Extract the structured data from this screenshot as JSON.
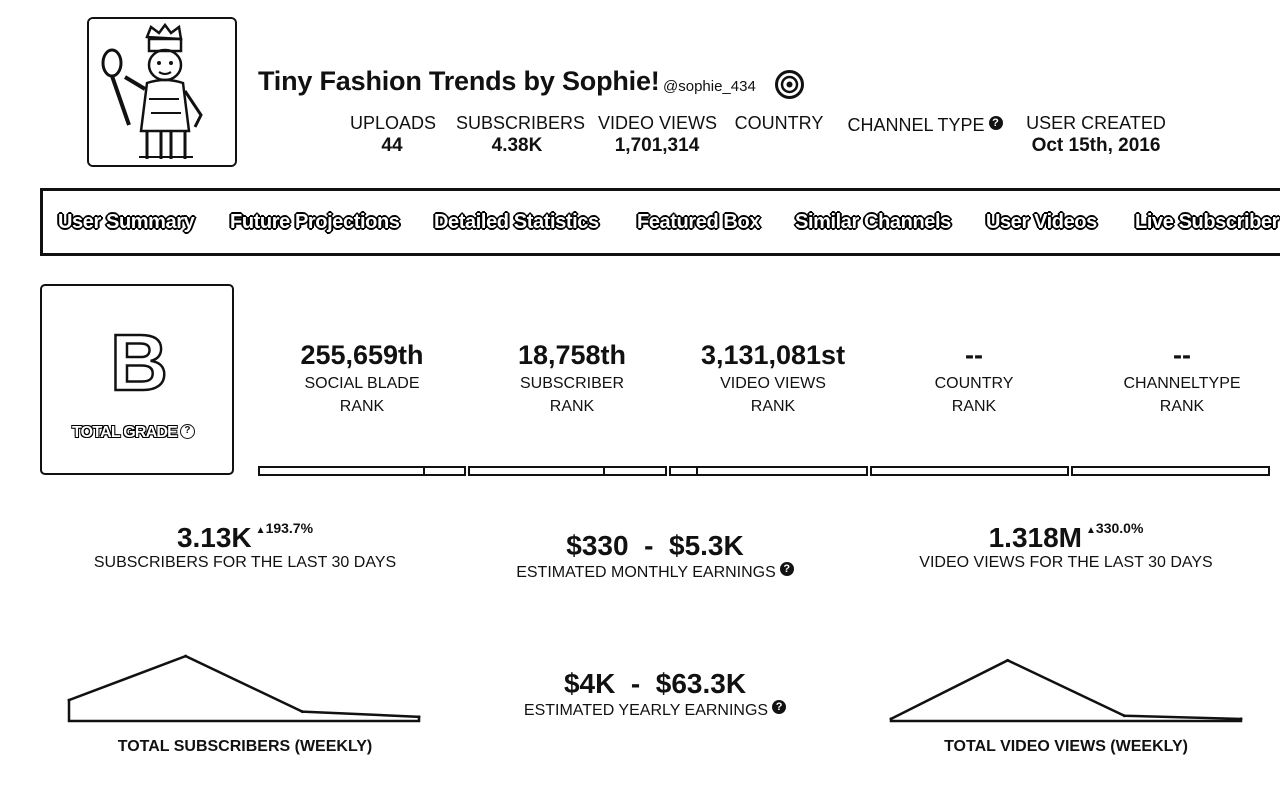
{
  "header": {
    "channel_name": "Tiny Fashion Trends by Sophie!",
    "handle": "@sophie_434",
    "stats": [
      {
        "label": "UPLOADS",
        "value": "44"
      },
      {
        "label": "SUBSCRIBERS",
        "value": "4.38K"
      },
      {
        "label": "VIDEO VIEWS",
        "value": "1,701,314"
      },
      {
        "label": "COUNTRY",
        "value": ""
      },
      {
        "label": "CHANNEL TYPE",
        "value": "",
        "help": "?"
      },
      {
        "label": "USER CREATED",
        "value": "Oct 15th, 2016"
      }
    ]
  },
  "nav": {
    "tabs": [
      "User Summary",
      "Future Projections",
      "Detailed Statistics",
      "Featured Box",
      "Similar Channels",
      "User Videos",
      "Live Subscriber C"
    ]
  },
  "grade": {
    "letter": "B",
    "label": "TOTAL GRADE",
    "help": "?"
  },
  "ranks": [
    {
      "value": "255,659th",
      "label1": "SOCIAL BLADE",
      "label2": "RANK",
      "fill": 0.8
    },
    {
      "value": "18,758th",
      "label1": "SUBSCRIBER",
      "label2": "RANK",
      "fill": 0.68
    },
    {
      "value": "3,131,081st",
      "label1": "VIDEO VIEWS",
      "label2": "RANK",
      "fill": 0.13
    },
    {
      "value": "--",
      "label1": "COUNTRY",
      "label2": "RANK",
      "fill": 1.0
    },
    {
      "value": "--",
      "label1": "CHANNELTYPE",
      "label2": "RANK",
      "fill": 1.0
    }
  ],
  "stats": {
    "subs_30": {
      "value": "3.13K",
      "change": "193.7%",
      "label": "SUBSCRIBERS FOR THE LAST 30 DAYS"
    },
    "monthly": {
      "value": "$330  -  $5.3K",
      "label": "ESTIMATED MONTHLY EARNINGS",
      "help": "?"
    },
    "views_30": {
      "value": "1.318M",
      "change": "330.0%",
      "label": "VIDEO VIEWS FOR THE LAST 30 DAYS"
    },
    "yearly": {
      "value": "$4K  -  $63.3K",
      "label": "ESTIMATED YEARLY EARNINGS",
      "help": "?"
    }
  },
  "chart_data": [
    {
      "type": "area",
      "title": "TOTAL SUBSCRIBERS (WEEKLY)",
      "x": [
        0,
        1,
        2,
        3
      ],
      "values": [
        20,
        62,
        9,
        4
      ],
      "ylim": [
        0,
        65
      ]
    },
    {
      "type": "area",
      "title": "TOTAL VIDEO VIEWS (WEEKLY)",
      "x": [
        0,
        1,
        2,
        3
      ],
      "values": [
        2,
        58,
        5,
        2
      ],
      "ylim": [
        0,
        65
      ]
    }
  ]
}
